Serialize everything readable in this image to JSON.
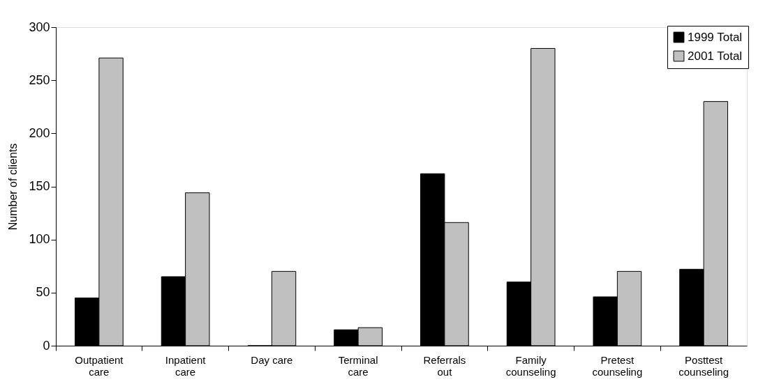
{
  "chart_data": {
    "type": "bar",
    "ylabel": "Number of clients",
    "categories": [
      "Outpatient\ncare",
      "Inpatient\ncare",
      "Day care",
      "Terminal\ncare",
      "Referrals\nout",
      "Family\ncounseling",
      "Pretest\ncounseling",
      "Posttest\ncounseling"
    ],
    "series": [
      {
        "name": "1999 Total",
        "color": "#000000",
        "values": [
          45,
          65,
          0,
          15,
          162,
          60,
          46,
          72
        ]
      },
      {
        "name": "2001 Total",
        "color": "#c0c0c0",
        "values": [
          271,
          144,
          70,
          17,
          116,
          280,
          70,
          230
        ]
      }
    ],
    "ylim": [
      0,
      300
    ],
    "yticks": [
      0,
      50,
      100,
      150,
      200,
      250,
      300
    ],
    "grid": false,
    "legend": "top right"
  }
}
